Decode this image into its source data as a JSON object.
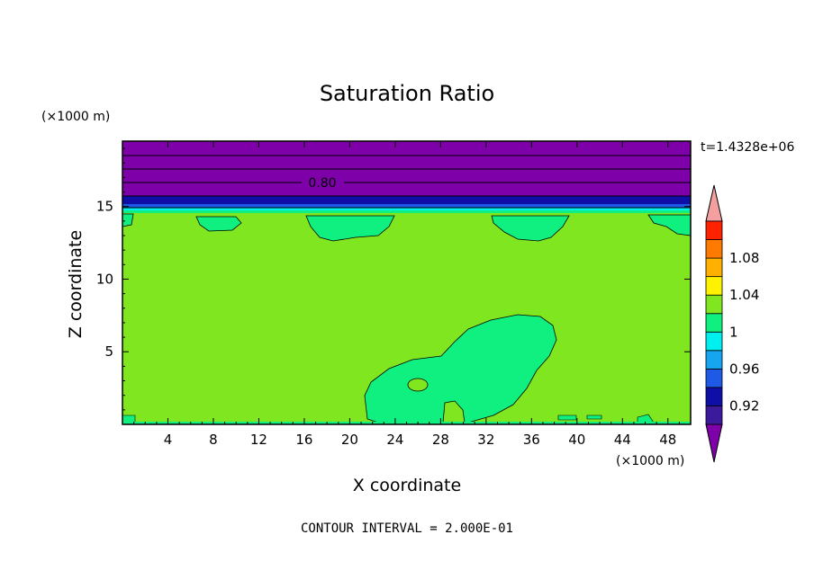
{
  "chart_data": {
    "type": "heatmap",
    "title": "Saturation Ratio",
    "xlabel": "X coordinate",
    "ylabel": "Z coordinate",
    "x_unit": "(×1000 m)",
    "y_unit": "(×1000 m)",
    "time_label": "t=1.4328e+06",
    "footer": "CONTOUR INTERVAL = 2.000E-01",
    "contour_label": "0.80",
    "xlim": [
      0,
      50
    ],
    "ylim": [
      0,
      19.5
    ],
    "x_ticks": [
      4,
      8,
      12,
      16,
      20,
      24,
      28,
      32,
      36,
      40,
      44,
      48
    ],
    "y_ticks": [
      5,
      10,
      15
    ],
    "colorbar": {
      "bins": [
        {
          "color": "#7d00a8",
          "range": "< 0.90"
        },
        {
          "color": "#3c1a9c",
          "range": "0.90-0.92"
        },
        {
          "color": "#0f0fa8",
          "range": "0.92-0.94"
        },
        {
          "color": "#1e5ae6",
          "range": "0.94-0.96"
        },
        {
          "color": "#16a6f0",
          "range": "0.96-0.98"
        },
        {
          "color": "#00f0f0",
          "range": "0.98-1.00"
        },
        {
          "color": "#10f080",
          "range": "1.00"
        },
        {
          "color": "#80e620",
          "range": "1.00-1.02"
        },
        {
          "color": "#fff200",
          "range": "1.02-1.04"
        },
        {
          "color": "#ffb000",
          "range": "1.04-1.06"
        },
        {
          "color": "#ff7a00",
          "range": "1.06-1.08"
        },
        {
          "color": "#ff2200",
          "range": "1.08-1.10"
        },
        {
          "color": "#f5a0a0",
          "range": "> 1.10"
        }
      ],
      "labels": [
        "0.92",
        "0.96",
        "1",
        "1.04",
        "1.08"
      ]
    },
    "regions": {
      "background_value": "1.00-1.02",
      "upper_dry_layer_value": "< 0.90",
      "notes": [
        "stratospheric layer above ~15.5 km is subsaturated",
        "moist plume near x 20-38 km up to ~7.5 km"
      ]
    }
  }
}
